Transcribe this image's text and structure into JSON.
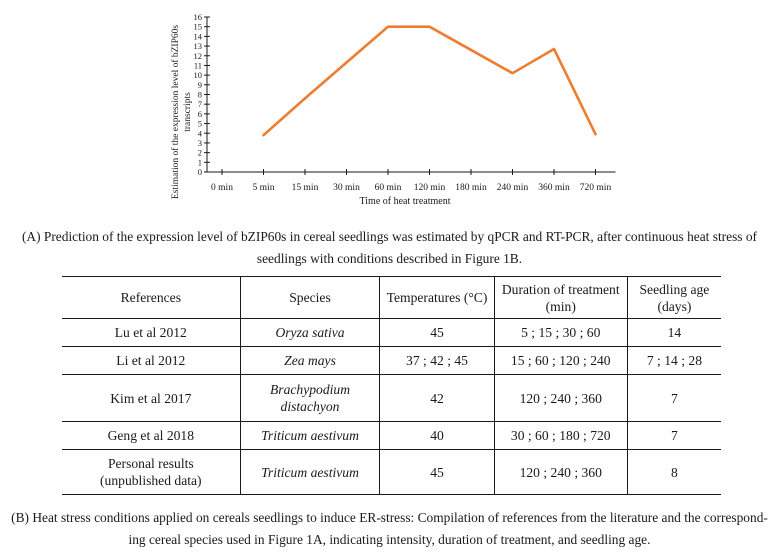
{
  "chart_data": {
    "type": "line",
    "ylabel": "Estimation of the expression level of bZIP60s transcripts",
    "xlabel": "Time of heat treatment",
    "categories": [
      "0 min",
      "5 min",
      "15 min",
      "30 min",
      "60 min",
      "120 min",
      "180 min",
      "240 min",
      "360 min",
      "720 min"
    ],
    "yticks": [
      0,
      1,
      2,
      3,
      4,
      5,
      6,
      7,
      8,
      9,
      10,
      11,
      12,
      13,
      14,
      15,
      16
    ],
    "ylim": [
      0,
      16
    ],
    "series": [
      {
        "values": [
          null,
          3.8,
          7.6,
          11.3,
          15,
          15,
          12.6,
          10.2,
          12.7,
          3.9
        ],
        "color": "#ED7D31"
      }
    ],
    "grid": false
  },
  "caption_a": [
    "(A) Prediction of the expression level of bZIP60s in cereal seedlings was estimated by qPCR and RT-PCR, after continuous heat stress of",
    "seedlings with conditions described in Figure 1B."
  ],
  "table": {
    "headers": [
      [
        "References"
      ],
      [
        "Species"
      ],
      [
        "Temperatures (°C)"
      ],
      [
        "Duration of",
        "treatment (min)"
      ],
      [
        "Seedling age",
        "(days)"
      ]
    ],
    "rows": [
      {
        "reference": [
          "Lu et al 2012"
        ],
        "species": [
          "Oryza sativa"
        ],
        "temperature": "45",
        "duration": "5 ; 15 ; 30 ; 60",
        "age": "14"
      },
      {
        "reference": [
          "Li et al 2012"
        ],
        "species": [
          "Zea mays"
        ],
        "temperature": "37 ; 42 ; 45",
        "duration": "15 ; 60 ; 120 ; 240",
        "age": "7 ; 14 ; 28"
      },
      {
        "reference": [
          "Kim et al 2017"
        ],
        "species": [
          "Brachypodium",
          "distachyon"
        ],
        "temperature": "42",
        "duration": "120 ; 240 ; 360",
        "age": "7"
      },
      {
        "reference": [
          "Geng et al 2018"
        ],
        "species": [
          "Triticum aestivum"
        ],
        "temperature": "40",
        "duration": "30 ; 60 ; 180 ; 720",
        "age": "7"
      },
      {
        "reference": [
          "Personal results",
          "(unpublished data)"
        ],
        "species": [
          "Triticum aestivum"
        ],
        "temperature": "45",
        "duration": "120 ; 240 ; 360",
        "age": "8"
      }
    ]
  },
  "caption_b": [
    "(B) Heat stress conditions applied on cereals seedlings to induce ER-stress: Compilation of references from the literature and the correspond-",
    "ing cereal species used in Figure 1A, indicating intensity, duration of treatment, and seedling age."
  ]
}
